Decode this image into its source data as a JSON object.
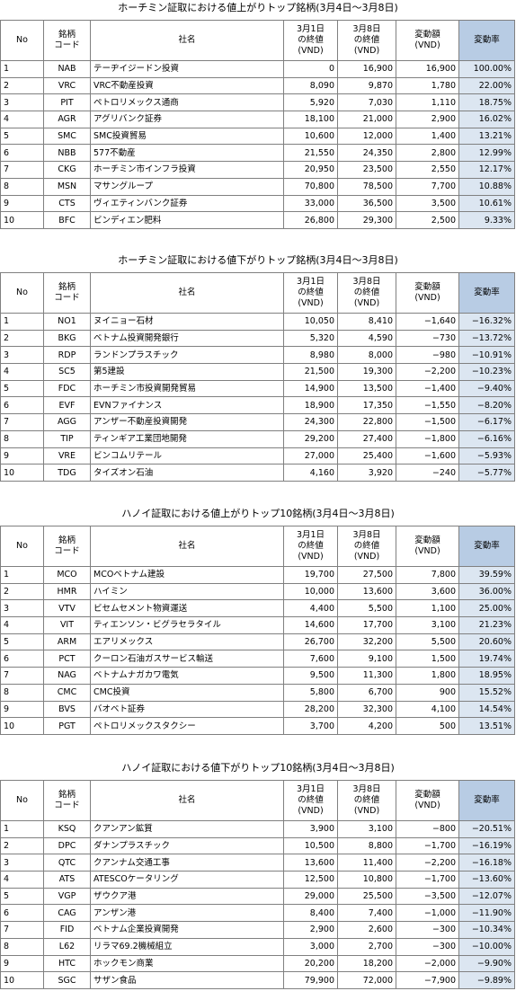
{
  "sections": [
    {
      "title": "ホーチミン証取における値上がりトップ銘柄(3月4日～3月8日)",
      "table": {
        "header": [
          "No",
          "銘柄\nコード",
          "社名",
          "3月1日\nの終値\n(VND)",
          "3月8日\nの終値\n(VND)",
          "変動額\n(VND)",
          "変動率"
        ],
        "rows": [
          [
            "1",
            "NAB",
            "テーヂイジードン投資",
            "0",
            "16,900",
            "16,900",
            "100.00%"
          ],
          [
            "2",
            "VRC",
            "VRC不動産投資",
            "8,090",
            "9,870",
            "1,780",
            "22.00%"
          ],
          [
            "3",
            "PIT",
            "ペトロリメックス通商",
            "5,920",
            "7,030",
            "1,110",
            "18.75%"
          ],
          [
            "4",
            "AGR",
            "アグリバンク証券",
            "18,100",
            "21,000",
            "2,900",
            "16.02%"
          ],
          [
            "5",
            "SMC",
            "SMC投資貿易",
            "10,600",
            "12,000",
            "1,400",
            "13.21%"
          ],
          [
            "6",
            "NBB",
            "577不動産",
            "21,550",
            "24,350",
            "2,800",
            "12.99%"
          ],
          [
            "7",
            "CKG",
            "ホーチミン市インフラ投資",
            "20,950",
            "23,500",
            "2,550",
            "12.17%"
          ],
          [
            "8",
            "MSN",
            "マサングループ",
            "70,800",
            "78,500",
            "7,700",
            "10.88%"
          ],
          [
            "9",
            "CTS",
            "ヴィエティンバンク証券",
            "33,000",
            "36,500",
            "3,500",
            "10.61%"
          ],
          [
            "10",
            "BFC",
            "ビンディエン肥料",
            "26,800",
            "29,300",
            "2,500",
            "9.33%"
          ]
        ]
      }
    },
    {
      "title": "ホーチミン証取における値下がりトップ銘柄(3月4日～3月8日)",
      "table": {
        "header": [
          "No",
          "銘柄\nコード",
          "社名",
          "3月1日\nの終値\n(VND)",
          "3月8日\nの終値\n(VND)",
          "変動額\n(VND)",
          "変動率"
        ],
        "rows": [
          [
            "1",
            "NO1",
            "ヌイニョー石材",
            "10,050",
            "8,410",
            "−1,640",
            "−16.32%"
          ],
          [
            "2",
            "BKG",
            "ベトナム投資開発銀行",
            "5,320",
            "4,590",
            "−730",
            "−13.72%"
          ],
          [
            "3",
            "RDP",
            "ランドンプラスチック",
            "8,980",
            "8,000",
            "−980",
            "−10.91%"
          ],
          [
            "4",
            "SC5",
            "第5建設",
            "21,500",
            "19,300",
            "−2,200",
            "−10.23%"
          ],
          [
            "5",
            "FDC",
            "ホーチミン市投資開発貿易",
            "14,900",
            "13,500",
            "−1,400",
            "−9.40%"
          ],
          [
            "6",
            "EVF",
            "EVNファイナンス",
            "18,900",
            "17,350",
            "−1,550",
            "−8.20%"
          ],
          [
            "7",
            "AGG",
            "アンザー不動産投資開発",
            "24,300",
            "22,800",
            "−1,500",
            "−6.17%"
          ],
          [
            "8",
            "TIP",
            "ティンギア工業団地開発",
            "29,200",
            "27,400",
            "−1,800",
            "−6.16%"
          ],
          [
            "9",
            "VRE",
            "ビンコムリテール",
            "27,000",
            "25,400",
            "−1,600",
            "−5.93%"
          ],
          [
            "10",
            "TDG",
            "タイズオン石油",
            "4,160",
            "3,920",
            "−240",
            "−5.77%"
          ]
        ]
      }
    },
    {
      "title": "ハノイ証取における値上がりトップ10銘柄(3月4日～3月8日)",
      "table": {
        "header": [
          "No",
          "銘柄\nコード",
          "社名",
          "3月1日\nの終値\n(VND)",
          "3月8日\nの終値\n(VND)",
          "変動額\n(VND)",
          "変動率"
        ],
        "rows": [
          [
            "1",
            "MCO",
            "MCOベトナム建設",
            "19,700",
            "27,500",
            "7,800",
            "39.59%"
          ],
          [
            "2",
            "HMR",
            "ハイミン",
            "10,000",
            "13,600",
            "3,600",
            "36.00%"
          ],
          [
            "3",
            "VTV",
            "ビセムセメント物資運送",
            "4,400",
            "5,500",
            "1,100",
            "25.00%"
          ],
          [
            "4",
            "VIT",
            "ティエンソン・ビグラセラタイル",
            "14,600",
            "17,700",
            "3,100",
            "21.23%"
          ],
          [
            "5",
            "ARM",
            "エアリメックス",
            "26,700",
            "32,200",
            "5,500",
            "20.60%"
          ],
          [
            "6",
            "PCT",
            "クーロン石油ガスサービス輸送",
            "7,600",
            "9,100",
            "1,500",
            "19.74%"
          ],
          [
            "7",
            "NAG",
            "ベトナムナガカワ電気",
            "9,500",
            "11,300",
            "1,800",
            "18.95%"
          ],
          [
            "8",
            "CMC",
            "CMC投資",
            "5,800",
            "6,700",
            "900",
            "15.52%"
          ],
          [
            "9",
            "BVS",
            "バオベト証券",
            "28,200",
            "32,300",
            "4,100",
            "14.54%"
          ],
          [
            "10",
            "PGT",
            "ペトロリメックスタクシー",
            "3,700",
            "4,200",
            "500",
            "13.51%"
          ]
        ]
      }
    },
    {
      "title": "ハノイ証取における値下がりトップ10銘柄(3月4日～3月8日)",
      "table": {
        "header": [
          "No",
          "銘柄\nコード",
          "社名",
          "3月1日\nの終値\n(VND)",
          "3月8日\nの終値\n(VND)",
          "変動額\n(VND)",
          "変動率"
        ],
        "rows": [
          [
            "1",
            "KSQ",
            "クアンアン鉱質",
            "3,900",
            "3,100",
            "−800",
            "−20.51%"
          ],
          [
            "2",
            "DPC",
            "ダナンプラスチック",
            "10,500",
            "8,800",
            "−1,700",
            "−16.19%"
          ],
          [
            "3",
            "QTC",
            "クアンナム交通工事",
            "13,600",
            "11,400",
            "−2,200",
            "−16.18%"
          ],
          [
            "4",
            "ATS",
            "ATESCOケータリング",
            "12,500",
            "10,800",
            "−1,700",
            "−13.60%"
          ],
          [
            "5",
            "VGP",
            "ザウクア港",
            "29,000",
            "25,500",
            "−3,500",
            "−12.07%"
          ],
          [
            "6",
            "CAG",
            "アンザン港",
            "8,400",
            "7,400",
            "−1,000",
            "−11.90%"
          ],
          [
            "7",
            "FID",
            "ベトナム企業投資開発",
            "2,900",
            "2,600",
            "−300",
            "−10.34%"
          ],
          [
            "8",
            "L62",
            "リラマ69.2機械組立",
            "3,000",
            "2,700",
            "−300",
            "−10.00%"
          ],
          [
            "9",
            "HTC",
            "ホックモン商業",
            "20,200",
            "18,200",
            "−2,000",
            "−9.90%"
          ],
          [
            "10",
            "SGC",
            "サザン食品",
            "79,900",
            "72,000",
            "−7,900",
            "−9.89%"
          ]
        ]
      }
    }
  ]
}
